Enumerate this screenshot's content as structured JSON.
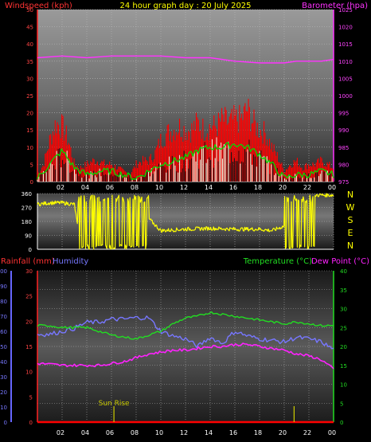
{
  "header": {
    "left": "Windspeed (kph)",
    "title": "24 hour graph day : 20 July 2025",
    "right": "Barometer (hpa)"
  },
  "colors": {
    "windspeed": "#ff0000",
    "wind_avg": "#00dd00",
    "wind_low": "#e8ffe8",
    "barometer": "#ff33ff",
    "direction": "#ffff00",
    "rainfall": "#ff0000",
    "humidity": "#7777ff",
    "temperature": "#22dd22",
    "dewpoint": "#ff22ff",
    "sunrise": "#cccc00"
  },
  "chart_data": [
    {
      "type": "line",
      "name": "wind_barometer",
      "x_ticks": [
        "02",
        "04",
        "06",
        "08",
        "10",
        "12",
        "14",
        "16",
        "18",
        "20",
        "22",
        "00"
      ],
      "xlim": [
        0,
        24
      ],
      "left_axis": {
        "label": "Windspeed (kph)",
        "ylim": [
          0,
          50
        ],
        "ticks": [
          0,
          5,
          10,
          15,
          20,
          25,
          30,
          35,
          40,
          45,
          50
        ]
      },
      "right_axis": {
        "label": "Barometer (hpa)",
        "ylim": [
          975,
          1025
        ],
        "ticks": [
          975,
          980,
          985,
          990,
          995,
          1000,
          1005,
          1010,
          1015,
          1020,
          1025
        ]
      },
      "series": [
        {
          "name": "Windspeed (kph)",
          "axis": "left",
          "x": [
            0,
            0.5,
            1,
            1.5,
            2,
            2.5,
            3,
            3.5,
            4,
            4.5,
            5,
            5.5,
            6,
            6.5,
            7,
            7.5,
            8,
            8.5,
            9,
            9.5,
            10,
            10.5,
            11,
            11.5,
            12,
            12.5,
            13,
            13.5,
            14,
            14.5,
            15,
            15.5,
            16,
            16.5,
            17,
            17.5,
            18,
            18.5,
            19,
            19.5,
            20,
            20.5,
            21,
            21.5,
            22,
            22.5,
            23,
            23.5,
            24
          ],
          "y": [
            2,
            5,
            12,
            17,
            16,
            12,
            5,
            4,
            5,
            6,
            6,
            5,
            5,
            4,
            3,
            2,
            5,
            6,
            6,
            8,
            12,
            14,
            15,
            16,
            15,
            15,
            17,
            15,
            16,
            16,
            18,
            17,
            18,
            18,
            21,
            17,
            15,
            14,
            10,
            7,
            3,
            5,
            6,
            4,
            5,
            5,
            6,
            5,
            4
          ]
        },
        {
          "name": "Wind average",
          "axis": "left",
          "x": [
            0,
            1,
            2,
            3,
            4,
            5,
            6,
            7,
            8,
            9,
            10,
            11,
            12,
            13,
            14,
            15,
            16,
            17,
            18,
            19,
            20,
            21,
            22,
            23,
            24
          ],
          "y": [
            1,
            5,
            9,
            4,
            2,
            3,
            3,
            2,
            1,
            3,
            5,
            6,
            7,
            9,
            10,
            10,
            11,
            10,
            8,
            5,
            1,
            2,
            2,
            3,
            2
          ]
        },
        {
          "name": "Barometer (hpa)",
          "axis": "right",
          "x": [
            0,
            2,
            4,
            6,
            8,
            10,
            12,
            14,
            16,
            18,
            19,
            20,
            21,
            22,
            23,
            24
          ],
          "y": [
            1011,
            1011.5,
            1011,
            1011.5,
            1011.5,
            1011.5,
            1011,
            1011,
            1010,
            1009.5,
            1009.5,
            1009.5,
            1010,
            1010,
            1010,
            1010.5
          ]
        }
      ]
    },
    {
      "type": "line",
      "name": "wind_direction",
      "x_ticks": [],
      "xlim": [
        0,
        24
      ],
      "left_axis": {
        "ylim": [
          0,
          360
        ],
        "ticks": [
          0,
          90,
          180,
          270,
          360
        ]
      },
      "right_labels": [
        "N",
        "W",
        "S",
        "E",
        "N"
      ],
      "series": [
        {
          "name": "Wind direction",
          "x": [
            0,
            1,
            2,
            3,
            3.5,
            4,
            5,
            6,
            7,
            8,
            9,
            10,
            12,
            14,
            16,
            18,
            19,
            20,
            20.5,
            21,
            22,
            23,
            24
          ],
          "y": [
            290,
            300,
            300,
            290,
            10,
            300,
            20,
            300,
            10,
            15,
            200,
            120,
            130,
            135,
            130,
            130,
            120,
            150,
            180,
            340,
            350,
            350,
            350
          ]
        }
      ]
    },
    {
      "type": "line",
      "name": "rain_humidity_temperature",
      "x_ticks": [
        "02",
        "04",
        "06",
        "08",
        "10",
        "12",
        "14",
        "16",
        "18",
        "20",
        "22",
        "00"
      ],
      "xlim": [
        0,
        24
      ],
      "left_labels": [
        "Rainfall (mm)",
        "Humidity"
      ],
      "right_labels": [
        "Temperature (°C)",
        "Dew Point (°C)"
      ],
      "humidity_axis": {
        "ylim": [
          0,
          100
        ],
        "ticks": [
          0,
          10,
          20,
          30,
          40,
          50,
          60,
          70,
          80,
          90,
          100
        ]
      },
      "rainfall_axis": {
        "ylim": [
          0,
          30
        ],
        "ticks": [
          0,
          5,
          10,
          15,
          20,
          25,
          30
        ]
      },
      "temperature_axis": {
        "ylim": [
          0,
          40
        ],
        "ticks": [
          0,
          5,
          10,
          15,
          20,
          25,
          30,
          35,
          40
        ]
      },
      "annotation": "Sun Rise",
      "sunrise_hour": 6.2,
      "sunset_hour": 20.8,
      "series": [
        {
          "name": "Humidity",
          "axis": "humidity",
          "x": [
            0,
            1,
            2,
            3,
            4,
            5,
            6,
            7,
            8,
            9,
            10,
            11,
            12,
            13,
            14,
            15,
            16,
            17,
            18,
            19,
            20,
            21,
            22,
            23,
            24
          ],
          "y": [
            58,
            58,
            60,
            62,
            66,
            66,
            68,
            68,
            69,
            69,
            60,
            57,
            55,
            50,
            56,
            52,
            60,
            57,
            55,
            54,
            53,
            56,
            55,
            53,
            48
          ]
        },
        {
          "name": "Temperature (°C)",
          "axis": "temperature",
          "x": [
            0,
            1,
            2,
            3,
            4,
            5,
            6,
            7,
            8,
            9,
            10,
            11,
            12,
            13,
            14,
            15,
            16,
            17,
            18,
            19,
            20,
            21,
            22,
            23,
            24
          ],
          "y": [
            25.5,
            25.5,
            25,
            25,
            25,
            24,
            23,
            22.5,
            22,
            23,
            24,
            26,
            27.5,
            28,
            29,
            28.5,
            28,
            27.5,
            27,
            26.5,
            26,
            26.5,
            26,
            25.5,
            25.5
          ]
        },
        {
          "name": "Dew Point (°C)",
          "axis": "temperature",
          "x": [
            0,
            1,
            2,
            3,
            4,
            5,
            6,
            7,
            8,
            9,
            10,
            11,
            12,
            13,
            14,
            15,
            16,
            17,
            18,
            19,
            20,
            21,
            22,
            23,
            24
          ],
          "y": [
            15.5,
            15.3,
            15,
            15,
            15,
            15,
            15.5,
            16,
            17,
            18,
            18.5,
            19,
            19,
            19.5,
            20,
            20,
            20.5,
            20.5,
            20,
            19.5,
            19,
            18,
            17.5,
            16.5,
            14
          ]
        },
        {
          "name": "Rainfall (mm)",
          "axis": "rainfall",
          "x": [
            0,
            24
          ],
          "y": [
            0,
            0
          ]
        }
      ]
    }
  ]
}
